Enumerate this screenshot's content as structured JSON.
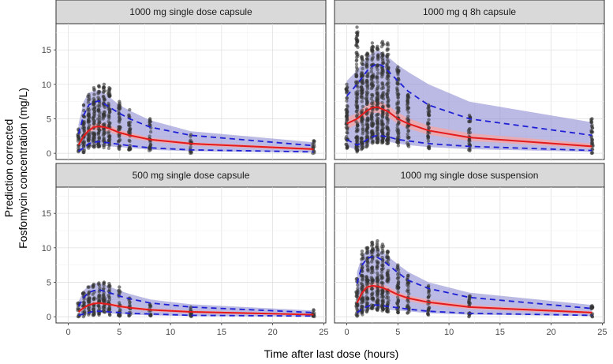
{
  "chart_data": {
    "type": "scatter",
    "xlabel": "Time after last dose (hours)",
    "ylabel_lines": [
      "Prediction corrected",
      "Fosfomycin concentration (mg/L)"
    ],
    "x_ticks": [
      0,
      5,
      10,
      15,
      20,
      25
    ],
    "y_ticks": [
      0,
      5,
      10,
      15
    ],
    "xlim": [
      -1.2,
      25.2
    ],
    "ylim": [
      -0.9,
      18.8
    ],
    "grid": true,
    "colors": {
      "median_line": "#e41a1c",
      "percentile_line": "#1f1fd6",
      "pi_band_outer": "#8c8cd2",
      "pi_band_median": "#f4a6a6",
      "points": "#333333",
      "strip": "#d9d9d9"
    },
    "panels": [
      {
        "title": "1000 mg single dose capsule",
        "x": [
          1,
          1.5,
          2,
          2.5,
          3,
          3.5,
          4,
          5,
          6,
          8,
          12,
          24
        ],
        "median": [
          1.2,
          2.5,
          3.3,
          3.8,
          3.9,
          3.8,
          3.6,
          3.0,
          2.6,
          2.0,
          1.4,
          0.6
        ],
        "p5": [
          0.3,
          0.8,
          1.4,
          1.6,
          1.7,
          1.6,
          1.5,
          1.3,
          1.1,
          0.8,
          0.5,
          0.2
        ],
        "p95": [
          2.8,
          5.5,
          7.0,
          7.4,
          7.6,
          7.2,
          6.7,
          5.8,
          5.0,
          3.8,
          2.6,
          1.1
        ],
        "pi_outer_low": [
          0.1,
          0.4,
          0.9,
          1.1,
          1.2,
          1.1,
          1.0,
          0.9,
          0.8,
          0.5,
          0.3,
          0.1
        ],
        "pi_outer_high": [
          4.2,
          7.5,
          8.8,
          9.0,
          9.2,
          8.8,
          8.2,
          7.0,
          6.2,
          4.8,
          3.2,
          1.6
        ],
        "pi_median_low": [
          1.0,
          2.1,
          2.9,
          3.3,
          3.4,
          3.3,
          3.1,
          2.6,
          2.2,
          1.7,
          1.1,
          0.4
        ],
        "pi_median_high": [
          1.5,
          2.9,
          3.8,
          4.3,
          4.4,
          4.3,
          4.1,
          3.4,
          3.0,
          2.3,
          1.6,
          0.8
        ],
        "point_max": [
          3.5,
          7.0,
          8.5,
          9.5,
          9.8,
          10.0,
          9.5,
          7.5,
          6.3,
          5.0,
          2.7,
          1.8
        ]
      },
      {
        "title": "1000 mg q 8h capsule",
        "x": [
          0,
          1,
          1.5,
          2,
          2.5,
          3,
          3.5,
          4,
          5,
          6,
          8,
          12,
          24
        ],
        "median": [
          4.3,
          5.0,
          5.6,
          6.2,
          6.6,
          6.7,
          6.4,
          6.1,
          5.0,
          4.3,
          3.3,
          2.3,
          1.0
        ],
        "p5": [
          2.0,
          1.2,
          1.5,
          2.0,
          2.4,
          2.6,
          2.5,
          2.4,
          2.0,
          1.8,
          1.4,
          1.0,
          0.4
        ],
        "p95": [
          8.3,
          10.0,
          11.0,
          12.0,
          12.6,
          13.0,
          12.7,
          12.0,
          10.5,
          9.0,
          7.0,
          5.0,
          2.6
        ],
        "pi_outer_low": [
          1.0,
          0.5,
          0.8,
          1.2,
          1.6,
          1.8,
          1.8,
          1.7,
          1.4,
          1.2,
          0.9,
          0.6,
          0.2
        ],
        "pi_outer_high": [
          10.5,
          12.0,
          13.0,
          14.0,
          14.5,
          15.0,
          14.6,
          14.0,
          12.8,
          11.8,
          10.0,
          7.5,
          4.5
        ],
        "pi_median_low": [
          3.5,
          4.2,
          4.8,
          5.4,
          5.8,
          5.9,
          5.6,
          5.3,
          4.3,
          3.6,
          2.7,
          1.8,
          0.7
        ],
        "pi_median_high": [
          5.2,
          5.8,
          6.5,
          7.1,
          7.5,
          7.6,
          7.3,
          7.0,
          5.9,
          5.1,
          4.0,
          2.9,
          1.4
        ],
        "point_max": [
          10.0,
          18.3,
          14.0,
          14.5,
          16.0,
          15.5,
          16.2,
          16.0,
          12.5,
          8.5,
          7.0,
          5.5,
          5.0
        ]
      },
      {
        "title": "500 mg single dose capsule",
        "x": [
          1,
          1.5,
          2,
          2.5,
          3,
          3.5,
          4,
          5,
          6,
          8,
          12,
          24
        ],
        "median": [
          0.7,
          1.3,
          1.7,
          1.9,
          2.0,
          1.9,
          1.8,
          1.5,
          1.3,
          1.0,
          0.7,
          0.3
        ],
        "p5": [
          0.2,
          0.4,
          0.6,
          0.8,
          0.8,
          0.8,
          0.7,
          0.6,
          0.5,
          0.4,
          0.2,
          0.1
        ],
        "p95": [
          1.5,
          2.8,
          3.5,
          3.8,
          3.9,
          3.7,
          3.5,
          3.0,
          2.6,
          2.0,
          1.4,
          0.6
        ],
        "pi_outer_low": [
          0.05,
          0.2,
          0.4,
          0.5,
          0.5,
          0.5,
          0.5,
          0.4,
          0.3,
          0.2,
          0.1,
          0.05
        ],
        "pi_outer_high": [
          2.2,
          3.8,
          4.5,
          4.8,
          4.9,
          4.7,
          4.4,
          3.8,
          3.3,
          2.5,
          1.8,
          0.9
        ],
        "pi_median_low": [
          0.5,
          1.1,
          1.5,
          1.7,
          1.8,
          1.7,
          1.6,
          1.3,
          1.1,
          0.8,
          0.5,
          0.2
        ],
        "pi_median_high": [
          0.9,
          1.5,
          1.9,
          2.2,
          2.3,
          2.2,
          2.0,
          1.8,
          1.5,
          1.2,
          0.9,
          0.4
        ],
        "point_max": [
          2.0,
          3.5,
          4.3,
          4.7,
          4.9,
          5.0,
          4.8,
          4.3,
          2.7,
          1.8,
          1.4,
          1.0
        ]
      },
      {
        "title": "1000 mg single dose suspension",
        "x": [
          1,
          1.5,
          2,
          2.5,
          3,
          3.5,
          4,
          5,
          6,
          8,
          12,
          24
        ],
        "median": [
          2.0,
          3.5,
          4.3,
          4.5,
          4.4,
          4.2,
          3.9,
          3.2,
          2.7,
          2.1,
          1.4,
          0.6
        ],
        "p5": [
          0.6,
          1.1,
          1.5,
          1.7,
          1.7,
          1.6,
          1.5,
          1.3,
          1.1,
          0.8,
          0.5,
          0.2
        ],
        "p95": [
          4.8,
          7.5,
          8.5,
          8.7,
          8.6,
          8.2,
          7.6,
          6.4,
          5.3,
          4.1,
          2.8,
          1.2
        ],
        "pi_outer_low": [
          0.2,
          0.6,
          1.0,
          1.2,
          1.2,
          1.1,
          1.0,
          0.9,
          0.8,
          0.5,
          0.3,
          0.1
        ],
        "pi_outer_high": [
          6.5,
          8.8,
          9.6,
          9.8,
          9.8,
          9.4,
          8.8,
          7.6,
          6.5,
          5.0,
          3.5,
          1.7
        ],
        "pi_median_low": [
          1.6,
          3.0,
          3.8,
          4.0,
          4.0,
          3.8,
          3.5,
          2.8,
          2.3,
          1.7,
          1.1,
          0.4
        ],
        "pi_median_high": [
          2.4,
          4.0,
          4.8,
          5.0,
          4.9,
          4.7,
          4.4,
          3.6,
          3.1,
          2.5,
          1.7,
          0.8
        ],
        "point_max": [
          5.5,
          9.5,
          10.0,
          10.8,
          11.0,
          10.5,
          9.5,
          7.5,
          6.0,
          4.5,
          3.0,
          1.6
        ]
      }
    ]
  }
}
